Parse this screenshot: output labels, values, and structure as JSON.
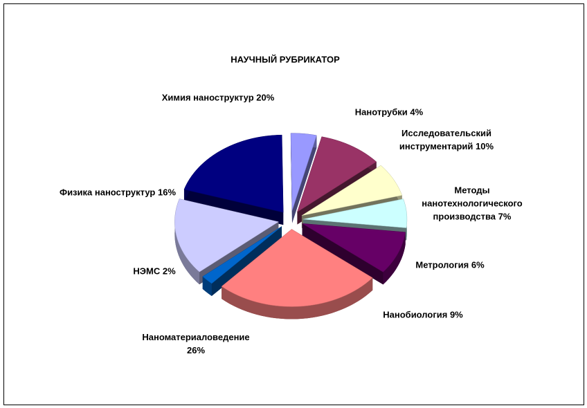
{
  "chart_data": {
    "type": "pie",
    "title": "НАУЧНЫЙ РУБРИКАТОР",
    "categories": [
      "Химия наноструктур",
      "Нанотрубки",
      "Исследовательский инструментарий",
      "Методы нанотехнологического производства",
      "Метрология",
      "Нанобиология",
      "Наноматериаловедение",
      "НЭМС",
      "Физика наноструктур"
    ],
    "values": [
      20,
      4,
      10,
      7,
      6,
      9,
      26,
      2,
      16
    ],
    "value_labels": [
      "20%",
      "4%",
      "10%",
      "7%",
      "6%",
      "9%",
      "26%",
      "2%",
      "16%"
    ],
    "colors": [
      "#000080",
      "#9999ff",
      "#993366",
      "#ffffcc",
      "#ccffff",
      "#660066",
      "#ff8080",
      "#0066cc",
      "#ccccff"
    ]
  }
}
